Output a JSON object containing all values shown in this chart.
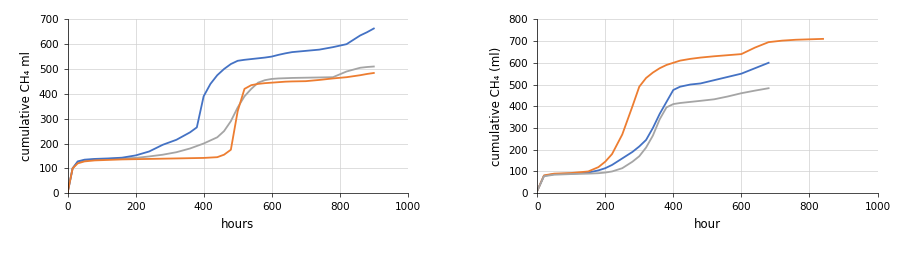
{
  "chart1": {
    "xlabel": "hours",
    "ylabel": "cumulative CH₄ ml",
    "xlim": [
      0,
      1000
    ],
    "ylim": [
      0,
      700
    ],
    "xticks": [
      0,
      200,
      400,
      600,
      800,
      1000
    ],
    "yticks": [
      0,
      100,
      200,
      300,
      400,
      500,
      600,
      700
    ],
    "series": {
      "seed + whey 4": {
        "color": "#a5a5a5",
        "x": [
          0,
          15,
          30,
          50,
          80,
          120,
          160,
          200,
          240,
          280,
          320,
          360,
          400,
          440,
          460,
          480,
          500,
          520,
          540,
          560,
          580,
          600,
          620,
          640,
          660,
          700,
          740,
          780,
          820,
          860,
          880,
          900
        ],
        "y": [
          0,
          100,
          125,
          132,
          136,
          138,
          140,
          142,
          148,
          155,
          165,
          180,
          200,
          225,
          250,
          290,
          345,
          390,
          420,
          445,
          455,
          460,
          462,
          463,
          464,
          465,
          466,
          467,
          490,
          505,
          508,
          510
        ]
      },
      "seed + whey 5": {
        "color": "#4472c4",
        "x": [
          0,
          15,
          30,
          50,
          80,
          120,
          160,
          200,
          240,
          280,
          320,
          360,
          380,
          400,
          420,
          440,
          460,
          480,
          500,
          520,
          540,
          560,
          580,
          600,
          620,
          640,
          660,
          700,
          740,
          780,
          820,
          860,
          880,
          900
        ],
        "y": [
          0,
          100,
          128,
          135,
          138,
          140,
          143,
          152,
          168,
          195,
          215,
          245,
          265,
          390,
          440,
          475,
          500,
          520,
          533,
          537,
          540,
          543,
          546,
          550,
          557,
          563,
          568,
          573,
          578,
          588,
          600,
          635,
          648,
          663
        ]
      },
      "seed + whey 6": {
        "color": "#ed7d31",
        "x": [
          0,
          15,
          30,
          50,
          80,
          120,
          160,
          200,
          240,
          280,
          320,
          360,
          400,
          440,
          460,
          480,
          500,
          520,
          540,
          560,
          580,
          600,
          620,
          640,
          660,
          700,
          740,
          780,
          820,
          860,
          880,
          900
        ],
        "y": [
          0,
          100,
          120,
          128,
          132,
          134,
          136,
          137,
          138,
          139,
          140,
          141,
          142,
          145,
          155,
          175,
          330,
          420,
          435,
          440,
          443,
          445,
          447,
          449,
          450,
          451,
          456,
          462,
          467,
          475,
          480,
          484
        ]
      }
    }
  },
  "chart2": {
    "xlabel": "hour",
    "ylabel": "cumulative CH₄ (ml)",
    "xlim": [
      0,
      1000
    ],
    "ylim": [
      0,
      800
    ],
    "xticks": [
      0,
      200,
      400,
      600,
      800,
      1000
    ],
    "yticks": [
      0,
      100,
      200,
      300,
      400,
      500,
      600,
      700,
      800
    ],
    "series": {
      "seed + goat + whey 10": {
        "color": "#4472c4",
        "x": [
          0,
          20,
          50,
          100,
          150,
          180,
          200,
          220,
          250,
          280,
          300,
          320,
          340,
          360,
          380,
          400,
          420,
          450,
          480,
          520,
          560,
          600,
          640,
          680
        ],
        "y": [
          10,
          80,
          88,
          90,
          95,
          105,
          115,
          130,
          160,
          190,
          215,
          245,
          300,
          365,
          420,
          475,
          490,
          500,
          505,
          520,
          535,
          550,
          575,
          600
        ]
      },
      "seed + goat + whey (11)": {
        "color": "#ed7d31",
        "x": [
          0,
          20,
          50,
          100,
          150,
          180,
          200,
          220,
          250,
          280,
          300,
          320,
          340,
          360,
          380,
          400,
          420,
          450,
          480,
          520,
          560,
          600,
          640,
          680,
          720,
          760,
          800,
          840
        ],
        "y": [
          10,
          82,
          90,
          93,
          100,
          120,
          145,
          180,
          270,
          400,
          490,
          530,
          555,
          575,
          590,
          600,
          610,
          618,
          624,
          630,
          635,
          640,
          670,
          695,
          702,
          706,
          708,
          710
        ]
      },
      "seed + goat + whey (12)": {
        "color": "#a5a5a5",
        "x": [
          0,
          20,
          50,
          100,
          150,
          180,
          200,
          220,
          250,
          280,
          300,
          320,
          340,
          360,
          380,
          400,
          420,
          450,
          480,
          520,
          560,
          600,
          640,
          680
        ],
        "y": [
          10,
          78,
          85,
          88,
          90,
          92,
          95,
          100,
          115,
          145,
          170,
          210,
          265,
          340,
          395,
          410,
          415,
          420,
          425,
          432,
          445,
          460,
          472,
          483
        ]
      }
    }
  },
  "background_color": "#ffffff",
  "grid_color": "#d0d0d0",
  "legend_fontsize": 7.5,
  "axis_label_fontsize": 8.5,
  "tick_fontsize": 7.5,
  "line_width": 1.3
}
